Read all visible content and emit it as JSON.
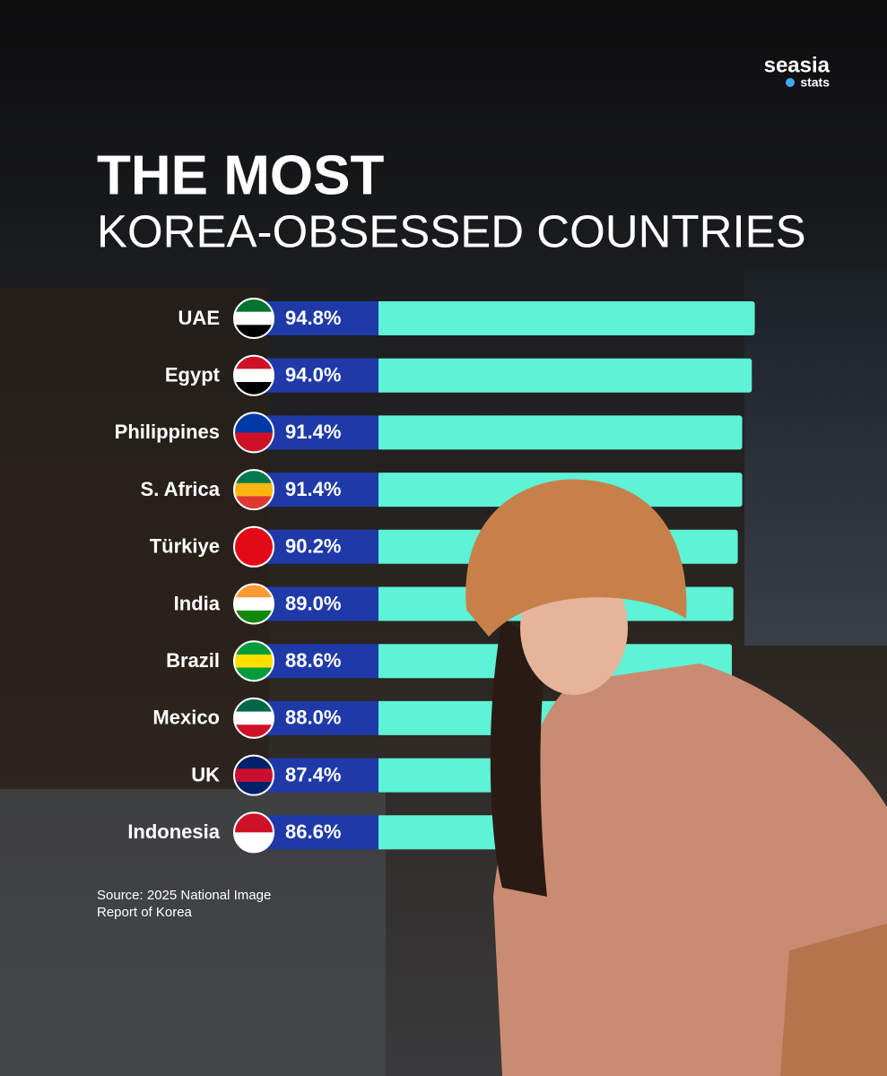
{
  "chart_data": {
    "type": "bar",
    "orientation": "horizontal",
    "brand": "seasia",
    "brand_sub": "stats",
    "title": "THE MOST",
    "subtitle": "KOREA-OBSESSED COUNTRIES",
    "categories": [
      "UAE",
      "Egypt",
      "Philippines",
      "S. Africa",
      "Türkiye",
      "India",
      "Brazil",
      "Mexico",
      "UK",
      "Indonesia"
    ],
    "values": [
      94.8,
      94.0,
      91.4,
      91.4,
      90.2,
      89.0,
      88.6,
      88.0,
      87.4,
      86.6
    ],
    "value_labels": [
      "94.8%",
      "94.0%",
      "91.4%",
      "91.4%",
      "90.2%",
      "89.0%",
      "88.6%",
      "88.0%",
      "87.4%",
      "86.6%"
    ],
    "color": "#5ef2d6",
    "label_box_color": "#1f3aa8",
    "source": [
      "Source: 2025 National Image",
      "Report of Korea"
    ]
  }
}
